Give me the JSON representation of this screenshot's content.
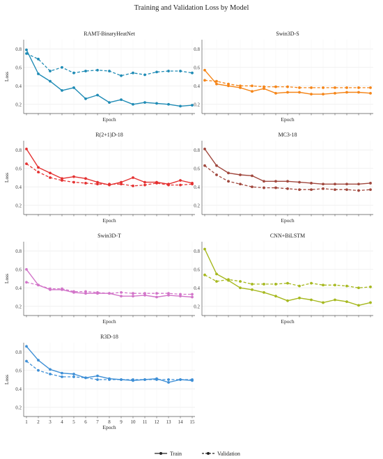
{
  "title": "Training and Validation Loss by Model",
  "legend": {
    "placement": "bottom-center",
    "items": [
      {
        "label": "Train",
        "style": "solid"
      },
      {
        "label": "Validation",
        "style": "dashed"
      }
    ]
  },
  "chart_data": [
    {
      "type": "line",
      "title": "RAMT-BinaryHeatNet",
      "xlabel": "Epoch",
      "ylabel": "Loss",
      "ylim": [
        0.1,
        0.9
      ],
      "yticks": [
        0.2,
        0.4,
        0.6,
        0.8
      ],
      "color": "#1f8bb5",
      "show_x_tick_labels": false,
      "x": [
        1,
        2,
        3,
        4,
        5,
        6,
        7,
        8,
        9,
        10,
        11,
        12,
        13,
        14,
        15
      ],
      "series": [
        {
          "name": "Train",
          "values": [
            0.79,
            0.53,
            0.45,
            0.35,
            0.38,
            0.26,
            0.3,
            0.22,
            0.25,
            0.2,
            0.22,
            0.21,
            0.2,
            0.18,
            0.19
          ]
        },
        {
          "name": "Validation",
          "values": [
            0.75,
            0.69,
            0.56,
            0.6,
            0.54,
            0.56,
            0.57,
            0.56,
            0.51,
            0.54,
            0.52,
            0.55,
            0.56,
            0.56,
            0.54
          ]
        }
      ]
    },
    {
      "type": "line",
      "title": "Swin3D-S",
      "xlabel": "Epoch",
      "ylabel": "",
      "ylim": [
        0.1,
        0.9
      ],
      "yticks": [
        0.2,
        0.4,
        0.6,
        0.8
      ],
      "color": "#f58518",
      "show_x_tick_labels": false,
      "x": [
        1,
        2,
        3,
        4,
        5,
        6,
        7,
        8,
        9,
        10,
        11,
        12,
        13,
        14,
        15
      ],
      "series": [
        {
          "name": "Train",
          "values": [
            0.57,
            0.42,
            0.4,
            0.38,
            0.34,
            0.37,
            0.32,
            0.33,
            0.33,
            0.31,
            0.31,
            0.32,
            0.33,
            0.33,
            0.32
          ]
        },
        {
          "name": "Validation",
          "values": [
            0.46,
            0.45,
            0.42,
            0.4,
            0.4,
            0.39,
            0.39,
            0.39,
            0.38,
            0.38,
            0.38,
            0.38,
            0.38,
            0.38,
            0.38
          ]
        }
      ]
    },
    {
      "type": "line",
      "title": "R(2+1)D-18",
      "xlabel": "Epoch",
      "ylabel": "Loss",
      "ylim": [
        0.1,
        0.9
      ],
      "yticks": [
        0.2,
        0.4,
        0.6,
        0.8
      ],
      "color": "#e43131",
      "show_x_tick_labels": false,
      "x": [
        1,
        2,
        3,
        4,
        5,
        6,
        7,
        8,
        9,
        10,
        11,
        12,
        13,
        14,
        15
      ],
      "series": [
        {
          "name": "Train",
          "values": [
            0.81,
            0.61,
            0.55,
            0.49,
            0.51,
            0.49,
            0.45,
            0.42,
            0.45,
            0.5,
            0.45,
            0.45,
            0.43,
            0.47,
            0.44
          ]
        },
        {
          "name": "Validation",
          "values": [
            0.65,
            0.56,
            0.5,
            0.47,
            0.45,
            0.44,
            0.43,
            0.43,
            0.43,
            0.41,
            0.42,
            0.44,
            0.42,
            0.42,
            0.43
          ]
        }
      ]
    },
    {
      "type": "line",
      "title": "MC3-18",
      "xlabel": "Epoch",
      "ylabel": "",
      "ylim": [
        0.1,
        0.9
      ],
      "yticks": [
        0.2,
        0.4,
        0.6,
        0.8
      ],
      "color": "#a0473d",
      "show_x_tick_labels": false,
      "x": [
        1,
        2,
        3,
        4,
        5,
        6,
        7,
        8,
        9,
        10,
        11,
        12,
        13,
        14,
        15
      ],
      "series": [
        {
          "name": "Train",
          "values": [
            0.81,
            0.63,
            0.55,
            0.53,
            0.52,
            0.46,
            0.46,
            0.46,
            0.45,
            0.44,
            0.43,
            0.43,
            0.43,
            0.43,
            0.44
          ]
        },
        {
          "name": "Validation",
          "values": [
            0.63,
            0.53,
            0.46,
            0.43,
            0.4,
            0.39,
            0.39,
            0.38,
            0.37,
            0.37,
            0.38,
            0.37,
            0.37,
            0.36,
            0.37
          ]
        }
      ]
    },
    {
      "type": "line",
      "title": "Swin3D-T",
      "xlabel": "Epoch",
      "ylabel": "Loss",
      "ylim": [
        0.1,
        0.9
      ],
      "yticks": [
        0.2,
        0.4,
        0.6,
        0.8
      ],
      "color": "#d275c9",
      "show_x_tick_labels": false,
      "x": [
        1,
        2,
        3,
        4,
        5,
        6,
        7,
        8,
        9,
        10,
        11,
        12,
        13,
        14,
        15
      ],
      "series": [
        {
          "name": "Train",
          "values": [
            0.6,
            0.43,
            0.38,
            0.38,
            0.35,
            0.34,
            0.34,
            0.34,
            0.31,
            0.31,
            0.32,
            0.3,
            0.32,
            0.31,
            0.3
          ]
        },
        {
          "name": "Validation",
          "values": [
            0.46,
            0.43,
            0.39,
            0.39,
            0.36,
            0.36,
            0.35,
            0.34,
            0.35,
            0.34,
            0.34,
            0.34,
            0.34,
            0.33,
            0.33
          ]
        }
      ]
    },
    {
      "type": "line",
      "title": "CNN+BiLSTM",
      "xlabel": "Epoch",
      "ylabel": "",
      "ylim": [
        0.1,
        0.9
      ],
      "yticks": [
        0.2,
        0.4,
        0.6,
        0.8
      ],
      "color": "#a6b81e",
      "show_x_tick_labels": false,
      "x": [
        1,
        2,
        3,
        4,
        5,
        6,
        7,
        8,
        9,
        10,
        11,
        12,
        13,
        14,
        15
      ],
      "series": [
        {
          "name": "Train",
          "values": [
            0.82,
            0.55,
            0.48,
            0.4,
            0.38,
            0.35,
            0.31,
            0.26,
            0.29,
            0.27,
            0.24,
            0.27,
            0.25,
            0.21,
            0.24
          ]
        },
        {
          "name": "Validation",
          "values": [
            0.54,
            0.47,
            0.49,
            0.47,
            0.44,
            0.44,
            0.44,
            0.45,
            0.42,
            0.45,
            0.43,
            0.43,
            0.42,
            0.4,
            0.41
          ]
        }
      ]
    },
    {
      "type": "line",
      "title": "R3D-18",
      "xlabel": "Epoch",
      "ylabel": "Loss",
      "ylim": [
        0.1,
        0.9
      ],
      "yticks": [
        0.2,
        0.4,
        0.6,
        0.8
      ],
      "color": "#3e8fd6",
      "show_x_tick_labels": true,
      "x": [
        1,
        2,
        3,
        4,
        5,
        6,
        7,
        8,
        9,
        10,
        11,
        12,
        13,
        14,
        15
      ],
      "series": [
        {
          "name": "Train",
          "values": [
            0.86,
            0.71,
            0.61,
            0.57,
            0.56,
            0.52,
            0.54,
            0.51,
            0.5,
            0.49,
            0.5,
            0.51,
            0.47,
            0.5,
            0.49
          ]
        },
        {
          "name": "Validation",
          "values": [
            0.7,
            0.6,
            0.56,
            0.53,
            0.53,
            0.52,
            0.5,
            0.5,
            0.5,
            0.5,
            0.5,
            0.5,
            0.5,
            0.5,
            0.5
          ]
        }
      ]
    }
  ]
}
